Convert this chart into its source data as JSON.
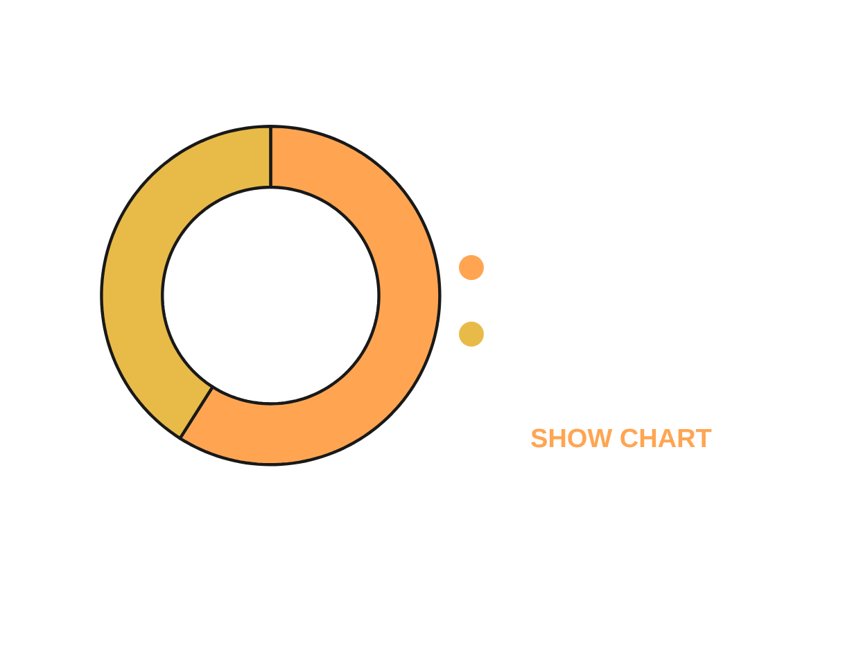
{
  "chart_data": {
    "type": "donut",
    "categories": [
      null,
      null
    ],
    "values": [
      59,
      41
    ],
    "colors": [
      "#ffa552",
      "#e8bb48"
    ],
    "annotations": [
      "SHOW CHART"
    ]
  }
}
